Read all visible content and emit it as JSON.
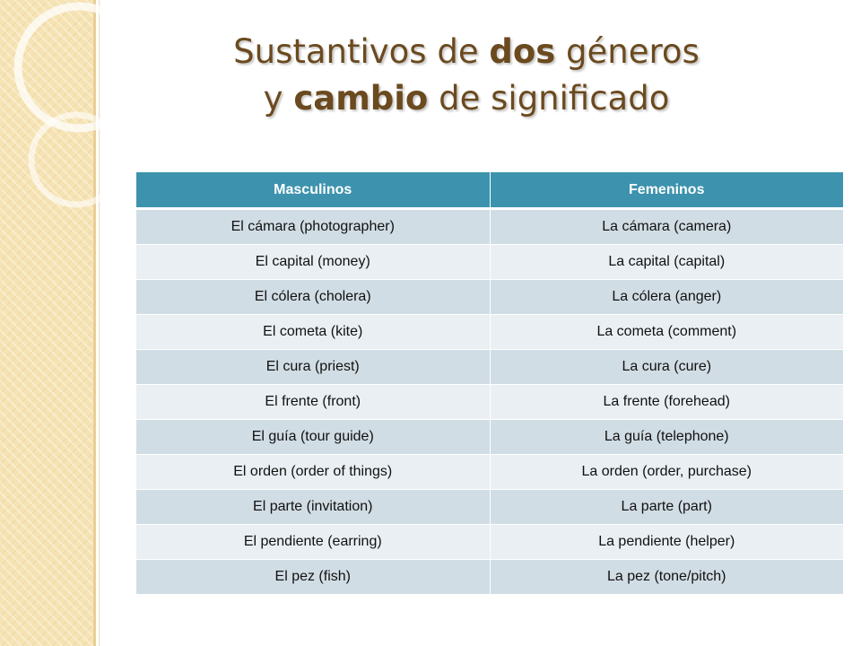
{
  "title": {
    "line1_before": "Sustantivos de ",
    "line1_bold": "dos",
    "line1_after": " géneros",
    "line2_before": "y ",
    "line2_bold": "cambio",
    "line2_after": " de significado"
  },
  "table": {
    "headers": [
      "Masculinos",
      "Femeninos"
    ],
    "rows": [
      [
        "El cámara (photographer)",
        "La cámara (camera)"
      ],
      [
        "El capital (money)",
        "La capital (capital)"
      ],
      [
        "El cólera (cholera)",
        "La cólera (anger)"
      ],
      [
        "El cometa (kite)",
        "La cometa (comment)"
      ],
      [
        "El cura (priest)",
        "La cura (cure)"
      ],
      [
        "El frente (front)",
        "La frente (forehead)"
      ],
      [
        "El guía (tour guide)",
        "La guía (telephone)"
      ],
      [
        "El orden (order of things)",
        "La orden (order, purchase)"
      ],
      [
        "El parte (invitation)",
        "La parte (part)"
      ],
      [
        "El pendiente (earring)",
        "La pendiente (helper)"
      ],
      [
        "El pez (fish)",
        "La pez (tone/pitch)"
      ]
    ]
  },
  "colors": {
    "title": "#6b4a1f",
    "header_bg": "#3d93ad",
    "row_odd": "#d1dde4",
    "row_even": "#e9eff3",
    "side_band": "#f6e3b4"
  }
}
